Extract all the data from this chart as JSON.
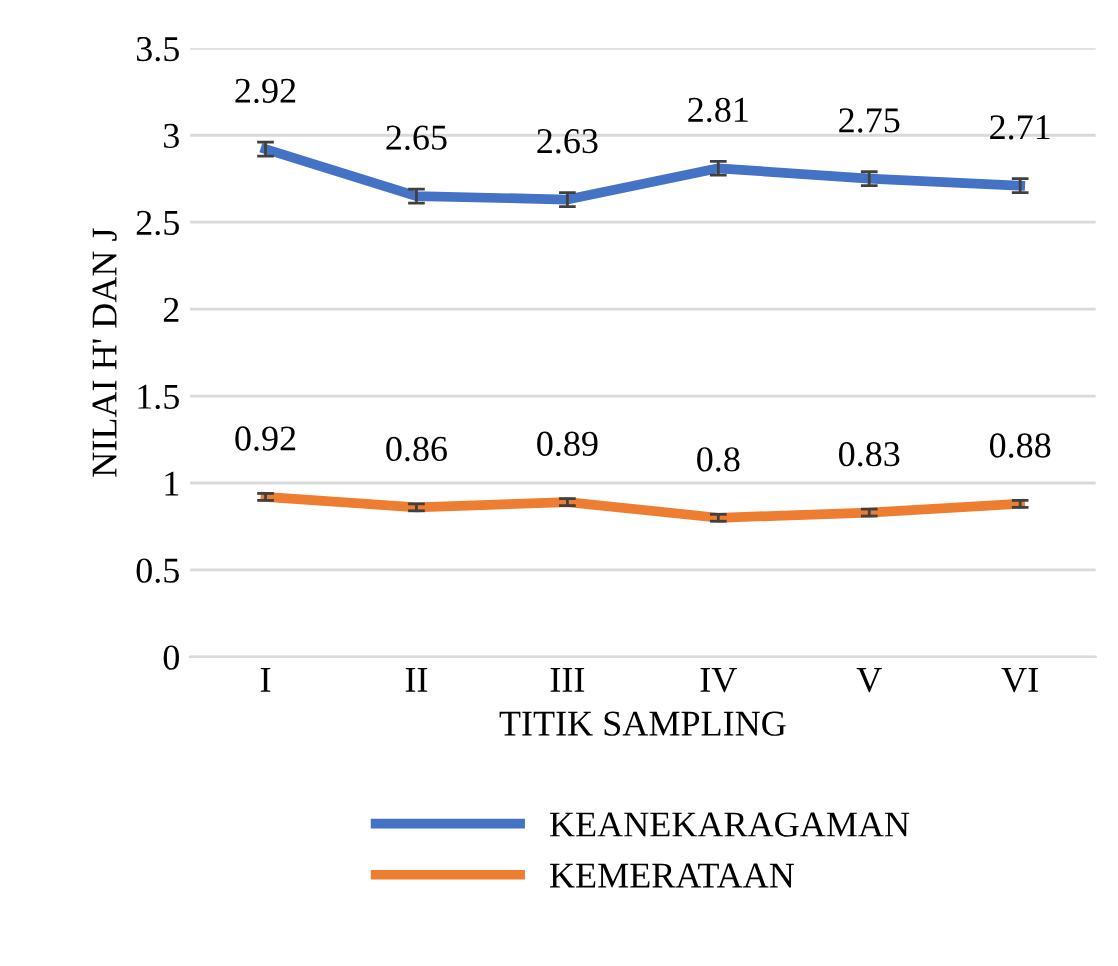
{
  "chart_data": {
    "type": "line",
    "xlabel": "TITIK SAMPLING",
    "ylabel": "NILAI H' DAN J",
    "categories": [
      "I",
      "II",
      "III",
      "IV",
      "V",
      "VI"
    ],
    "series": [
      {
        "name": "KEANEKARAGAMAN",
        "color": "#4472c4",
        "values": [
          2.92,
          2.65,
          2.63,
          2.81,
          2.75,
          2.71
        ],
        "errors": [
          0.04,
          0.04,
          0.04,
          0.04,
          0.04,
          0.04
        ]
      },
      {
        "name": "KEMERATAAN",
        "color": "#ed7d31",
        "values": [
          0.92,
          0.86,
          0.89,
          0.8,
          0.83,
          0.88
        ],
        "errors": [
          0.02,
          0.02,
          0.02,
          0.02,
          0.02,
          0.02
        ]
      }
    ],
    "ylim": [
      0,
      3.5
    ],
    "yticks": [
      0,
      0.5,
      1,
      1.5,
      2,
      2.5,
      3,
      3.5
    ],
    "grid": "y",
    "legend": "bottom",
    "data_labels": true,
    "marker": "none",
    "line_style": "solid"
  }
}
